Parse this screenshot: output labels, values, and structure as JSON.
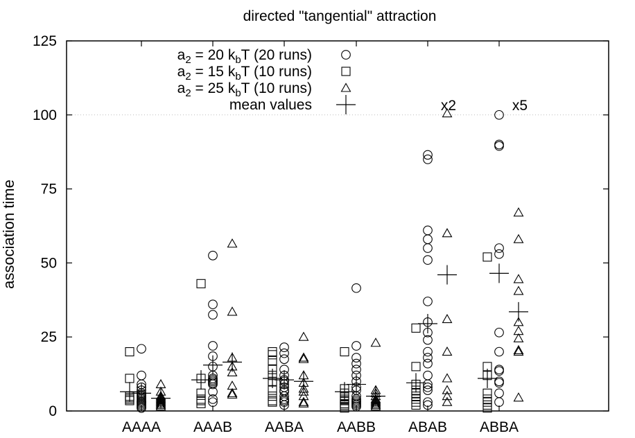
{
  "chart_data": {
    "type": "scatter",
    "title": "directed \"tangential\" attraction",
    "ylabel": "association time",
    "xlabel": "",
    "ylim": [
      0,
      125
    ],
    "yticks": [
      0,
      25,
      50,
      75,
      100,
      125
    ],
    "grid_line_at": 100,
    "categories": [
      "AAAA",
      "AAAB",
      "AABA",
      "AABB",
      "ABAB",
      "ABBA"
    ],
    "legend_position": "top-left",
    "legend": [
      {
        "prefix": "a",
        "sub": "2",
        "mid": " = 20 k",
        "sub2": "b",
        "suffix": "T (20 runs)",
        "marker": "circle"
      },
      {
        "prefix": "a",
        "sub": "2",
        "mid": " = 15 k",
        "sub2": "b",
        "suffix": "T (10 runs)",
        "marker": "square"
      },
      {
        "prefix": "a",
        "sub": "2",
        "mid": " = 25 k",
        "sub2": "b",
        "suffix": "T (10 runs)",
        "marker": "triangle"
      },
      {
        "prefix": "mean values",
        "sub": "",
        "mid": "",
        "sub2": "",
        "suffix": "",
        "marker": "plus"
      }
    ],
    "annotations": [
      {
        "text": "x2",
        "category": "ABAB"
      },
      {
        "text": "x5",
        "category": "ABBA"
      }
    ],
    "series": [
      {
        "marker": "square",
        "values": {
          "AAAA": [
            20,
            11,
            5,
            4.5,
            4,
            3.5
          ],
          "AAAB": [
            43,
            11,
            6,
            4,
            3.5,
            2.5
          ],
          "AABA": [
            20,
            19,
            17,
            14,
            12,
            10,
            7,
            5,
            3.5,
            3
          ],
          "AABB": [
            20,
            7.5,
            6,
            5,
            4,
            3.5,
            2.5,
            2,
            1.5,
            1
          ],
          "ABAB": [
            28,
            15,
            9,
            7,
            6,
            5,
            4,
            3,
            2
          ],
          "ABBA": [
            52,
            15,
            12,
            6,
            4,
            3,
            2,
            1
          ]
        }
      },
      {
        "marker": "circle",
        "values": {
          "AAAA": [
            21,
            12,
            9,
            8,
            7,
            6,
            5.5,
            5,
            4.5,
            4,
            3.5,
            3,
            3,
            2.5,
            2,
            1.5,
            1
          ],
          "AAAB": [
            52.5,
            36,
            32.5,
            22,
            18.5,
            15,
            12,
            11,
            10.5,
            10,
            9.5,
            9,
            6.5,
            4,
            3
          ],
          "AABA": [
            21.5,
            19.5,
            17.5,
            14,
            12,
            10.5,
            10,
            9,
            8,
            7,
            6.5,
            5,
            4,
            3.5,
            3,
            2
          ],
          "AABB": [
            41.5,
            22,
            18,
            16,
            14,
            12,
            10,
            8,
            7,
            5,
            4,
            3.5,
            3,
            2.5,
            2,
            1.5
          ],
          "ABAB": [
            86.5,
            85,
            61,
            58,
            55,
            51,
            37,
            30,
            26.5,
            24,
            20,
            18,
            16,
            12,
            9,
            8,
            7,
            3,
            2
          ],
          "ABBA": [
            100,
            90,
            89.5,
            55,
            53,
            26.5,
            20,
            14,
            13.5,
            10,
            9.5,
            6,
            3
          ]
        }
      },
      {
        "marker": "triangle",
        "values": {
          "AAAA": [
            9,
            6.5,
            5,
            4.5,
            4,
            3.5,
            3,
            2.5,
            2,
            1.5
          ],
          "AAAB": [
            56.5,
            33.5,
            18,
            15,
            13,
            8.5,
            6,
            5.5
          ],
          "AABA": [
            25,
            18,
            17.5,
            12,
            9.5,
            7.5,
            6.5,
            5,
            3,
            2.5
          ],
          "AABB": [
            23,
            7,
            6,
            5,
            4,
            3.5,
            3,
            2.5,
            2,
            1.5
          ],
          "ABAB": [
            100.5,
            60,
            31,
            20,
            11,
            7,
            5,
            3
          ],
          "ABBA": [
            67,
            58,
            44.5,
            40.5,
            30,
            27,
            24.5,
            20.5,
            20,
            4.5
          ]
        }
      }
    ],
    "means": {
      "AAAA": [
        6.5,
        6,
        4.3
      ],
      "AAAB": [
        10.5,
        15.5,
        16.5
      ],
      "AABA": [
        11,
        10.5,
        10
      ],
      "AABB": [
        6.5,
        9,
        5
      ],
      "ABAB": [
        9.5,
        29.5,
        46
      ],
      "ABBA": [
        11,
        46.5,
        33.5
      ]
    }
  }
}
